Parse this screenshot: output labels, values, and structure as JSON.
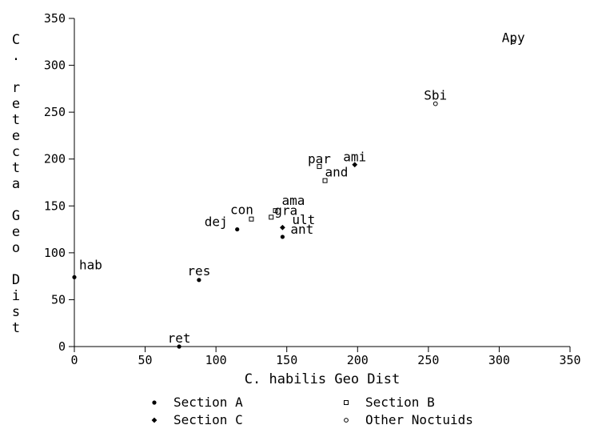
{
  "chart_data": {
    "type": "scatter",
    "xlabel": "C. habilis Geo Dist",
    "ylabel": "C. retecta Geo Dist",
    "xlim": [
      0,
      350
    ],
    "ylim": [
      0,
      350
    ],
    "xticks": [
      0,
      50,
      100,
      150,
      200,
      250,
      300,
      350
    ],
    "yticks": [
      0,
      50,
      100,
      150,
      200,
      250,
      300,
      350
    ],
    "grid": false,
    "legend_position": "bottom",
    "series": [
      {
        "name": "Section A",
        "marker": "filled-circle",
        "points": [
          {
            "label": "hab",
            "x": 0,
            "y": 74
          },
          {
            "label": "res",
            "x": 88,
            "y": 71
          },
          {
            "label": "ret",
            "x": 74,
            "y": 0
          },
          {
            "label": "dej",
            "x": 115,
            "y": 125
          },
          {
            "label": "ant",
            "x": 147,
            "y": 117
          }
        ]
      },
      {
        "name": "Section B",
        "marker": "open-square",
        "points": [
          {
            "label": "con",
            "x": 125,
            "y": 136
          },
          {
            "label": "ama",
            "x": 142,
            "y": 145
          },
          {
            "label": "gra",
            "x": 139,
            "y": 138
          },
          {
            "label": "par",
            "x": 173,
            "y": 192
          },
          {
            "label": "and",
            "x": 177,
            "y": 177
          }
        ]
      },
      {
        "name": "Section C",
        "marker": "filled-diamond",
        "points": [
          {
            "label": "ult",
            "x": 147,
            "y": 127
          },
          {
            "label": "ami",
            "x": 198,
            "y": 194
          }
        ]
      },
      {
        "name": "Other Noctuids",
        "marker": "open-circle",
        "points": [
          {
            "label": "Sbi",
            "x": 255,
            "y": 259
          },
          {
            "label": "Apy",
            "x": 310,
            "y": 325
          }
        ]
      }
    ]
  }
}
